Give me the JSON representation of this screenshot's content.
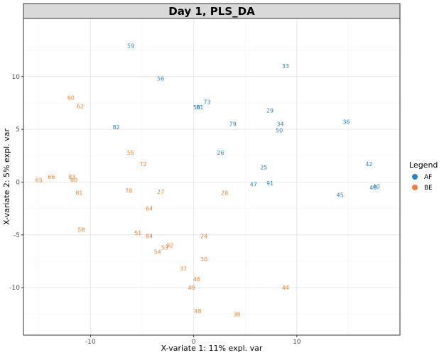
{
  "chart_data": {
    "type": "scatter",
    "title": "Day 1, PLS_DA",
    "xlabel": "X-variate 1: 11% expl. var",
    "ylabel": "X-variate 2: 5% expl. var",
    "xlim": [
      -16.5,
      20
    ],
    "ylim": [
      -14.5,
      15.5
    ],
    "xticks": [
      -10,
      0,
      10
    ],
    "yticks": [
      -10,
      -5,
      0,
      5,
      10
    ],
    "xtick_labels": [
      "-10",
      "0",
      "10"
    ],
    "ytick_labels": [
      "-10",
      "-5",
      "0",
      "5",
      "10"
    ],
    "grid": true,
    "legend": {
      "title": "Legend",
      "position": "right",
      "entries": [
        {
          "name": "AF",
          "color": "#3182bd"
        },
        {
          "name": "BE",
          "color": "#e6843c"
        }
      ]
    },
    "series": [
      {
        "name": "AF",
        "color": "#3182bd",
        "points": [
          {
            "label": "59",
            "x": -6.1,
            "y": 12.9
          },
          {
            "label": "33",
            "x": 8.9,
            "y": 11.0
          },
          {
            "label": "56",
            "x": -3.2,
            "y": 9.8
          },
          {
            "label": "73",
            "x": 1.3,
            "y": 7.6
          },
          {
            "label": "58",
            "x": 0.3,
            "y": 7.1
          },
          {
            "label": "81",
            "x": 0.6,
            "y": 7.1
          },
          {
            "label": "29",
            "x": 7.4,
            "y": 6.8
          },
          {
            "label": "36",
            "x": 14.8,
            "y": 5.7
          },
          {
            "label": "82",
            "x": -7.5,
            "y": 5.2
          },
          {
            "label": "79",
            "x": 3.8,
            "y": 5.5
          },
          {
            "label": "34",
            "x": 8.4,
            "y": 5.5
          },
          {
            "label": "50",
            "x": 8.3,
            "y": 4.9
          },
          {
            "label": "26",
            "x": 2.6,
            "y": 2.8
          },
          {
            "label": "42",
            "x": 17.0,
            "y": 1.7
          },
          {
            "label": "25",
            "x": 6.8,
            "y": 1.4
          },
          {
            "label": "47",
            "x": 5.8,
            "y": -0.2
          },
          {
            "label": "91",
            "x": 7.4,
            "y": -0.1
          },
          {
            "label": "40",
            "x": 17.7,
            "y": -0.4
          },
          {
            "label": "48",
            "x": 17.4,
            "y": -0.5
          },
          {
            "label": "45",
            "x": 14.2,
            "y": -1.2
          }
        ]
      },
      {
        "name": "BE",
        "color": "#e6843c",
        "points": [
          {
            "label": "60",
            "x": -11.9,
            "y": 8.0
          },
          {
            "label": "62",
            "x": -11.0,
            "y": 7.2
          },
          {
            "label": "55",
            "x": -6.1,
            "y": 2.8
          },
          {
            "label": "72",
            "x": -4.9,
            "y": 1.7
          },
          {
            "label": "65",
            "x": -15.0,
            "y": 0.2
          },
          {
            "label": "66",
            "x": -13.8,
            "y": 0.5
          },
          {
            "label": "83",
            "x": -11.8,
            "y": 0.5
          },
          {
            "label": "80",
            "x": -11.6,
            "y": 0.2
          },
          {
            "label": "81",
            "x": -11.1,
            "y": -1.0
          },
          {
            "label": "78",
            "x": -6.3,
            "y": -0.8
          },
          {
            "label": "27",
            "x": -3.2,
            "y": -0.9
          },
          {
            "label": "28",
            "x": 3.0,
            "y": -1.0
          },
          {
            "label": "64",
            "x": -4.3,
            "y": -2.5
          },
          {
            "label": "58",
            "x": -10.9,
            "y": -4.5
          },
          {
            "label": "51",
            "x": -5.4,
            "y": -4.8
          },
          {
            "label": "84",
            "x": -4.3,
            "y": -5.1
          },
          {
            "label": "24",
            "x": 1.0,
            "y": -5.1
          },
          {
            "label": "92",
            "x": -2.3,
            "y": -6.0
          },
          {
            "label": "53",
            "x": -2.8,
            "y": -6.2
          },
          {
            "label": "54",
            "x": -3.5,
            "y": -6.6
          },
          {
            "label": "30",
            "x": 1.0,
            "y": -7.3
          },
          {
            "label": "37",
            "x": -1.0,
            "y": -8.2
          },
          {
            "label": "46",
            "x": 0.3,
            "y": -9.2
          },
          {
            "label": "49",
            "x": -0.2,
            "y": -10.0
          },
          {
            "label": "44",
            "x": 8.9,
            "y": -10.0
          },
          {
            "label": "48",
            "x": 0.4,
            "y": -12.2
          },
          {
            "label": "39",
            "x": 4.2,
            "y": -12.5
          }
        ]
      }
    ]
  }
}
